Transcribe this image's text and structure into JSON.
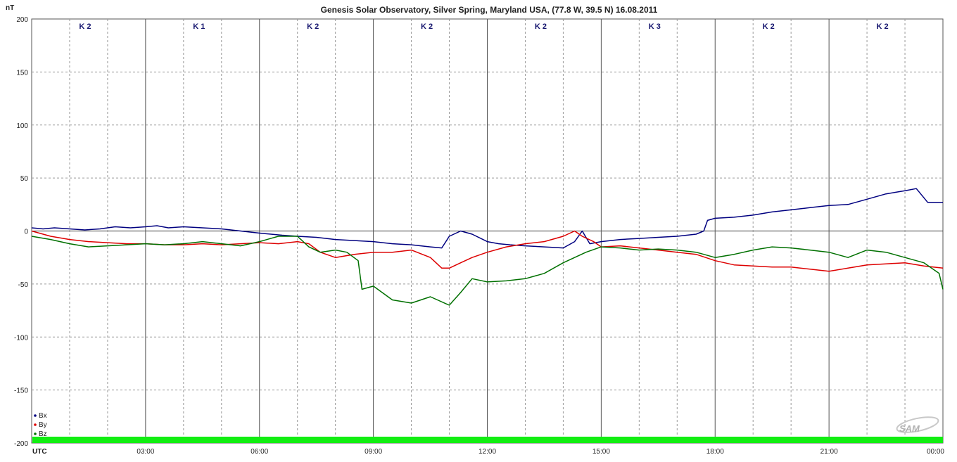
{
  "chart_data": {
    "type": "line",
    "title": "Genesis Solar Observatory, Silver Spring, Maryland USA, (77.8 W, 39.5 N)  16.08.2011",
    "ylabel": "nT",
    "xlabel": "UTC",
    "ylim": [
      -200,
      200
    ],
    "xlim_hours": [
      0,
      24
    ],
    "y_ticks": [
      "200",
      "150",
      "100",
      "50",
      "0",
      "-50",
      "-100",
      "-150",
      "-200"
    ],
    "y_tick_values": [
      200,
      150,
      100,
      50,
      0,
      -50,
      -100,
      -150,
      -200
    ],
    "x_ticks": [
      "UTC",
      "03:00",
      "06:00",
      "09:00",
      "12:00",
      "15:00",
      "18:00",
      "21:00",
      "00:00"
    ],
    "x_tick_hours": [
      0,
      3,
      6,
      9,
      12,
      15,
      18,
      21,
      24
    ],
    "k_index": [
      "K 2",
      "K 1",
      "K 2",
      "K 2",
      "K 2",
      "K 3",
      "K 2",
      "K 2"
    ],
    "grid": true,
    "legend_position": "bottom-left",
    "series": [
      {
        "name": "Bx",
        "color": "#000080",
        "x": [
          0,
          0.3,
          0.6,
          1,
          1.4,
          1.8,
          2.2,
          2.6,
          3,
          3.3,
          3.6,
          4,
          4.5,
          5,
          5.5,
          6,
          6.3,
          6.6,
          7,
          7.5,
          8,
          8.5,
          9,
          9.5,
          10,
          10.5,
          10.8,
          11,
          11.3,
          11.6,
          12,
          12.3,
          12.6,
          13,
          13.5,
          14,
          14.3,
          14.5,
          14.7,
          15,
          15.5,
          16,
          16.5,
          17,
          17.5,
          17.7,
          17.8,
          18,
          18.5,
          19,
          19.5,
          20,
          20.5,
          21,
          21.5,
          22,
          22.5,
          23,
          23.3,
          23.6,
          24
        ],
        "y": [
          3,
          2,
          3,
          2,
          1,
          2,
          4,
          3,
          4,
          5,
          3,
          4,
          3,
          2,
          0,
          -2,
          -3,
          -4,
          -5,
          -6,
          -8,
          -9,
          -10,
          -12,
          -13,
          -15,
          -16,
          -5,
          0,
          -3,
          -10,
          -12,
          -13,
          -14,
          -15,
          -16,
          -10,
          0,
          -12,
          -10,
          -8,
          -7,
          -6,
          -5,
          -3,
          0,
          10,
          12,
          13,
          15,
          18,
          20,
          22,
          24,
          25,
          30,
          35,
          38,
          40,
          27,
          27
        ]
      },
      {
        "name": "By",
        "color": "#dd0000",
        "x": [
          0,
          0.5,
          1,
          1.5,
          2,
          2.5,
          3,
          3.5,
          4,
          4.5,
          5,
          5.5,
          6,
          6.5,
          7,
          7.3,
          7.6,
          8,
          8.5,
          9,
          9.5,
          10,
          10.5,
          10.8,
          11,
          11.3,
          11.6,
          12,
          12.5,
          13,
          13.5,
          14,
          14.3,
          14.5,
          14.8,
          15,
          15.5,
          16,
          16.5,
          17,
          17.5,
          18,
          18.5,
          19,
          19.5,
          20,
          20.5,
          21,
          21.5,
          22,
          22.5,
          23,
          23.5,
          24
        ],
        "y": [
          0,
          -5,
          -8,
          -10,
          -11,
          -12,
          -12,
          -13,
          -13,
          -12,
          -13,
          -12,
          -11,
          -12,
          -10,
          -12,
          -20,
          -25,
          -22,
          -20,
          -20,
          -18,
          -25,
          -35,
          -35,
          -30,
          -25,
          -20,
          -15,
          -12,
          -10,
          -5,
          0,
          -5,
          -10,
          -15,
          -14,
          -16,
          -18,
          -20,
          -22,
          -28,
          -32,
          -33,
          -34,
          -34,
          -36,
          -38,
          -35,
          -32,
          -31,
          -30,
          -33,
          -35
        ]
      },
      {
        "name": "Bz",
        "color": "#007000",
        "x": [
          0,
          0.5,
          1,
          1.5,
          2,
          2.5,
          3,
          3.5,
          4,
          4.5,
          5,
          5.5,
          6,
          6.5,
          7,
          7.3,
          7.6,
          8,
          8.3,
          8.6,
          8.7,
          9,
          9.5,
          10,
          10.5,
          11,
          11.3,
          11.6,
          12,
          12.5,
          13,
          13.5,
          14,
          14.3,
          14.6,
          15,
          15.5,
          16,
          16.5,
          17,
          17.5,
          18,
          18.5,
          19,
          19.5,
          20,
          20.5,
          21,
          21.5,
          22,
          22.5,
          23,
          23.5,
          23.9,
          24
        ],
        "y": [
          -5,
          -8,
          -12,
          -15,
          -14,
          -13,
          -12,
          -13,
          -12,
          -10,
          -12,
          -14,
          -10,
          -5,
          -5,
          -15,
          -20,
          -18,
          -20,
          -28,
          -55,
          -52,
          -65,
          -68,
          -62,
          -70,
          -58,
          -45,
          -48,
          -47,
          -45,
          -40,
          -30,
          -25,
          -20,
          -15,
          -16,
          -18,
          -17,
          -18,
          -20,
          -25,
          -22,
          -18,
          -15,
          -16,
          -18,
          -20,
          -25,
          -18,
          -20,
          -25,
          -30,
          -40,
          -55
        ]
      }
    ]
  },
  "logo_text": "SAM"
}
